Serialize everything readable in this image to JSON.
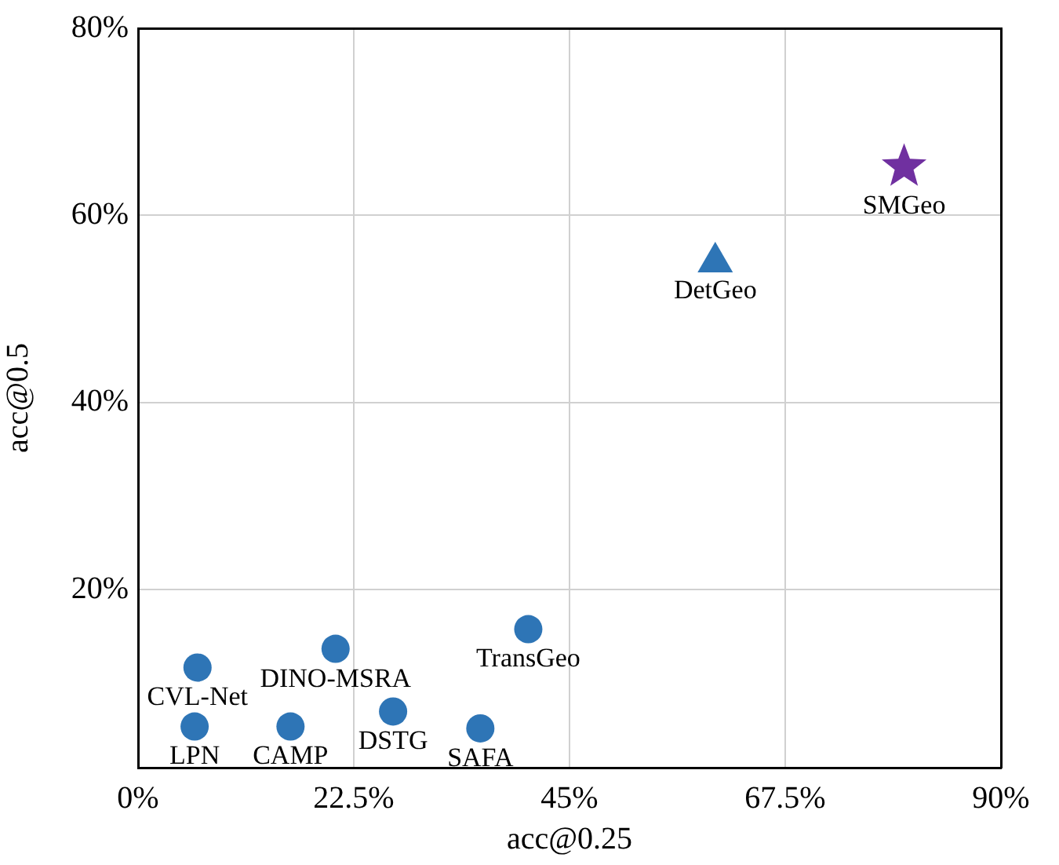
{
  "chart_data": {
    "type": "scatter",
    "xlabel": "acc@0.25",
    "ylabel": "acc@0.5",
    "xlim": [
      0,
      90
    ],
    "xticks": [
      {
        "value": 0,
        "label": "0%"
      },
      {
        "value": 22.5,
        "label": "22.5%"
      },
      {
        "value": 45,
        "label": "45%"
      },
      {
        "value": 67.5,
        "label": "67.5%"
      },
      {
        "value": 90,
        "label": "90%"
      }
    ],
    "ylim": [
      1,
      80
    ],
    "yticks": [
      {
        "value": 20,
        "label": "20%"
      },
      {
        "value": 40,
        "label": "40%"
      },
      {
        "value": 60,
        "label": "60%"
      },
      {
        "value": 80,
        "label": "80%"
      }
    ],
    "grid": true,
    "legend": false,
    "series": [
      {
        "name": "LPN",
        "color": "#2e75b6",
        "marker": "circle",
        "x": [
          5.9
        ],
        "values": [
          5.4
        ]
      },
      {
        "name": "CVL-Net",
        "color": "#2e75b6",
        "marker": "circle",
        "x": [
          6.2
        ],
        "values": [
          11.7
        ]
      },
      {
        "name": "CAMP",
        "color": "#2e75b6",
        "marker": "circle",
        "x": [
          15.9
        ],
        "values": [
          5.4
        ]
      },
      {
        "name": "DINO-MSRA",
        "color": "#2e75b6",
        "marker": "circle",
        "x": [
          20.6
        ],
        "values": [
          13.7
        ]
      },
      {
        "name": "DSTG",
        "color": "#2e75b6",
        "marker": "circle",
        "x": [
          26.6
        ],
        "values": [
          7.0
        ]
      },
      {
        "name": "SAFA",
        "color": "#2e75b6",
        "marker": "circle",
        "x": [
          35.7
        ],
        "values": [
          5.2
        ]
      },
      {
        "name": "TransGeo",
        "color": "#2e75b6",
        "marker": "circle",
        "x": [
          40.7
        ],
        "values": [
          15.8
        ]
      },
      {
        "name": "DetGeo",
        "color": "#2e75b6",
        "marker": "triangle",
        "x": [
          60.2
        ],
        "values": [
          55.0
        ]
      },
      {
        "name": "SMGeo",
        "color": "#7030a0",
        "marker": "star",
        "x": [
          79.9
        ],
        "values": [
          65.2
        ]
      }
    ]
  }
}
